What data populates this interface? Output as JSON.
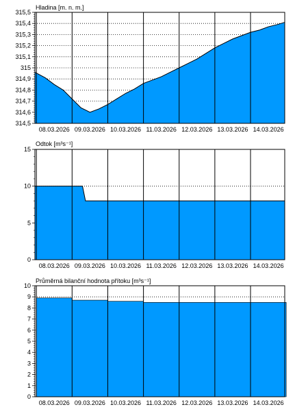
{
  "chart_data": [
    {
      "type": "area",
      "title": "Hladina [m. n. m.]",
      "color": "#0099ff",
      "ylim": [
        314.5,
        315.5
      ],
      "yticks": [
        314.5,
        314.6,
        314.7,
        314.8,
        314.9,
        315.0,
        315.1,
        315.2,
        315.3,
        315.4,
        315.5
      ],
      "ytick_labels": [
        "314,5",
        "314,6",
        "314,7",
        "314,8",
        "314,9",
        "315",
        "315,1",
        "315,2",
        "315,3",
        "315,4",
        "315,5"
      ],
      "x_categories": [
        "08.03.2026",
        "09.03.2026",
        "10.03.2026",
        "11.03.2026",
        "12.03.2026",
        "13.03.2026",
        "14.03.2026"
      ],
      "x": [
        "07.03.2026 23:00",
        "08.03.2026 06:00",
        "08.03.2026 12:00",
        "08.03.2026 18:00",
        "09.03.2026 00:00",
        "09.03.2026 06:00",
        "09.03.2026 12:00",
        "09.03.2026 18:00",
        "10.03.2026 00:00",
        "10.03.2026 06:00",
        "10.03.2026 12:00",
        "10.03.2026 18:00",
        "11.03.2026 00:00",
        "11.03.2026 06:00",
        "11.03.2026 12:00",
        "11.03.2026 18:00",
        "12.03.2026 00:00",
        "12.03.2026 06:00",
        "12.03.2026 12:00",
        "12.03.2026 18:00",
        "13.03.2026 00:00",
        "13.03.2026 06:00",
        "13.03.2026 12:00",
        "13.03.2026 18:00",
        "14.03.2026 00:00",
        "14.03.2026 06:00",
        "14.03.2026 12:00",
        "14.03.2026 18:00",
        "14.03.2026 23:00"
      ],
      "values": [
        314.96,
        314.91,
        314.85,
        314.8,
        314.72,
        314.64,
        314.6,
        314.63,
        314.67,
        314.72,
        314.77,
        314.81,
        314.86,
        314.89,
        314.92,
        314.96,
        315.0,
        315.04,
        315.08,
        315.13,
        315.18,
        315.22,
        315.26,
        315.29,
        315.32,
        315.34,
        315.37,
        315.39,
        315.41
      ]
    },
    {
      "type": "area",
      "title": "Odtok [m³s⁻¹]",
      "color": "#0099ff",
      "ylim": [
        0,
        15
      ],
      "yticks": [
        0,
        5,
        10,
        15
      ],
      "ytick_labels": [
        "0",
        "5",
        "10",
        "15"
      ],
      "x_categories": [
        "08.03.2026",
        "09.03.2026",
        "10.03.2026",
        "11.03.2026",
        "12.03.2026",
        "13.03.2026",
        "14.03.2026"
      ],
      "x": [
        "07.03.2026 23:00",
        "09.03.2026 07:00",
        "09.03.2026 09:00",
        "10.03.2026 00:00",
        "11.03.2026 00:00",
        "12.03.2026 00:00",
        "13.03.2026 00:00",
        "14.03.2026 00:00",
        "14.03.2026 23:00"
      ],
      "values": [
        10.0,
        10.0,
        8.0,
        8.0,
        8.0,
        8.0,
        8.0,
        8.0,
        8.0
      ]
    },
    {
      "type": "area",
      "title": "Průměrná bilanční hodnota přítoku [m³s⁻¹]",
      "color": "#0099ff",
      "ylim": [
        0,
        10
      ],
      "yticks": [
        0,
        1,
        2,
        3,
        4,
        5,
        6,
        7,
        8,
        9,
        10
      ],
      "ytick_labels": [
        "0",
        "1",
        "2",
        "3",
        "4",
        "5",
        "6",
        "7",
        "8",
        "9",
        "10"
      ],
      "x_categories": [
        "08.03.2026",
        "09.03.2026",
        "10.03.2026",
        "11.03.2026",
        "12.03.2026",
        "13.03.2026",
        "14.03.2026"
      ],
      "x": [
        "08.03.2026 00:00",
        "09.03.2026 00:00",
        "10.03.2026 00:00",
        "11.03.2026 00:00",
        "12.03.2026 00:00",
        "13.03.2026 00:00",
        "14.03.2026 00:00"
      ],
      "values": [
        8.9,
        8.7,
        8.6,
        8.5,
        8.5,
        8.5,
        8.5
      ],
      "bar_style": true
    }
  ]
}
